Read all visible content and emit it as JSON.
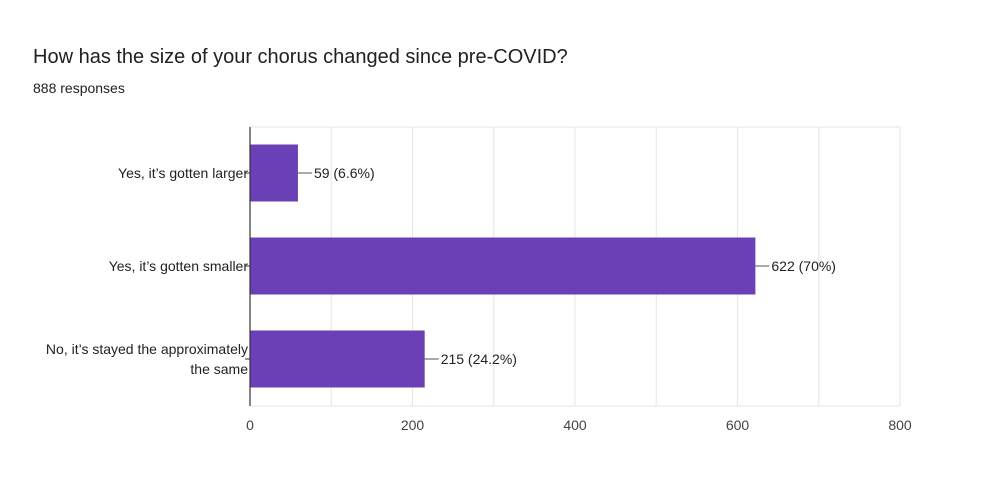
{
  "question": {
    "title": "How has the size of your chorus changed since pre-COVID?",
    "responses": "888 responses"
  },
  "colors": {
    "bar": "#6b40b6",
    "grid": "#e6e6e6",
    "axis": "#333333",
    "leader": "#555555"
  },
  "chart_data": {
    "type": "bar",
    "orientation": "horizontal",
    "title": "",
    "xlabel": "",
    "ylabel": "",
    "grid": true,
    "xlim": [
      0,
      800
    ],
    "xticks": [
      0,
      200,
      400,
      600,
      800
    ],
    "xtick_labels": [
      "0",
      "200",
      "400",
      "600",
      "800"
    ],
    "categories": [
      [
        "Yes, it’s gotten larger"
      ],
      [
        "Yes, it’s gotten smaller"
      ],
      [
        "No, it’s stayed the approximately",
        "the same"
      ]
    ],
    "values": [
      59,
      622,
      215
    ],
    "data_labels": [
      "59 (6.6%)",
      "622 (70%)",
      "215 (24.2%)"
    ]
  }
}
